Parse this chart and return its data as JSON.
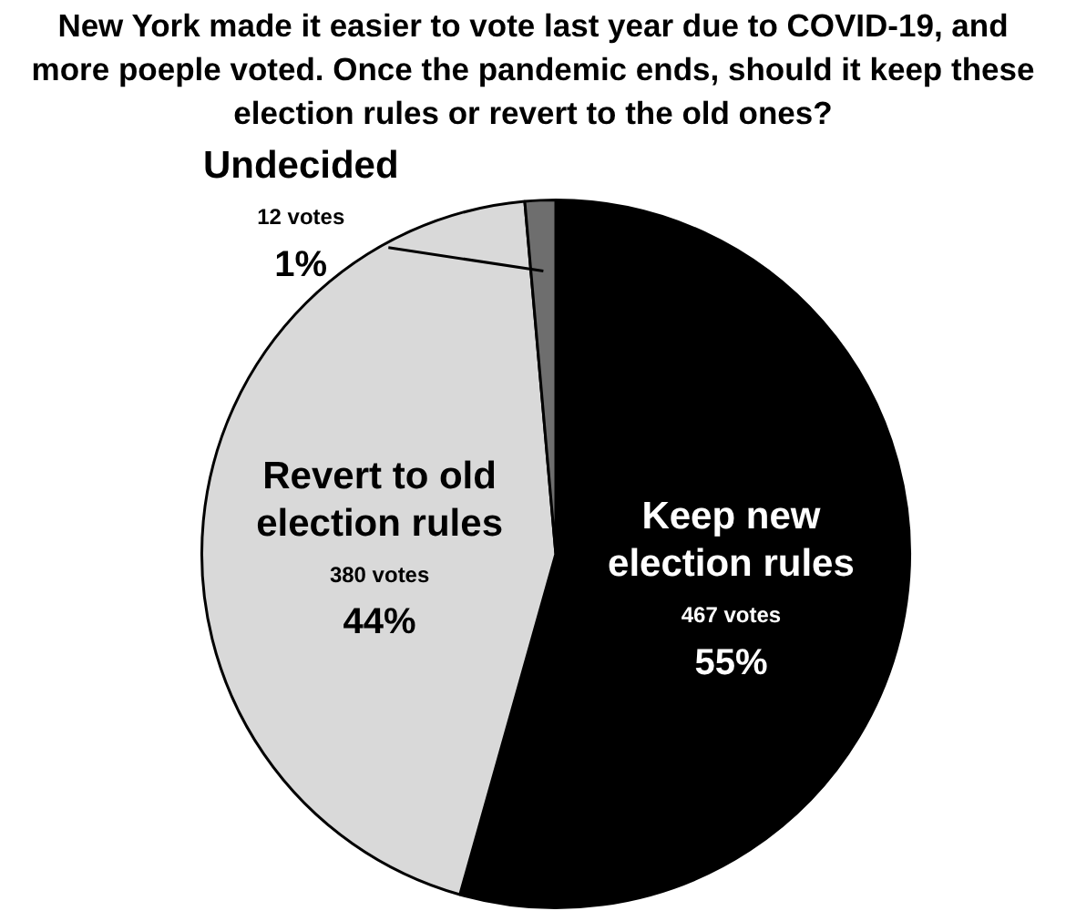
{
  "chart_data": {
    "type": "pie",
    "title": "New York made it easier to vote last year due to COVID-19, and more poeple voted. Once the pandemic ends, should it keep these election rules or revert to the old ones?",
    "categories": [
      "Keep new election rules",
      "Revert to old election rules",
      "Undecided"
    ],
    "values": [
      467,
      380,
      12
    ],
    "colors": [
      "#000000",
      "#d9d9d9",
      "#6e6e6e"
    ],
    "value_labels": [
      "467 votes\n55%",
      "380 votes\n44%",
      "12 votes\n1%"
    ],
    "legend": false
  }
}
